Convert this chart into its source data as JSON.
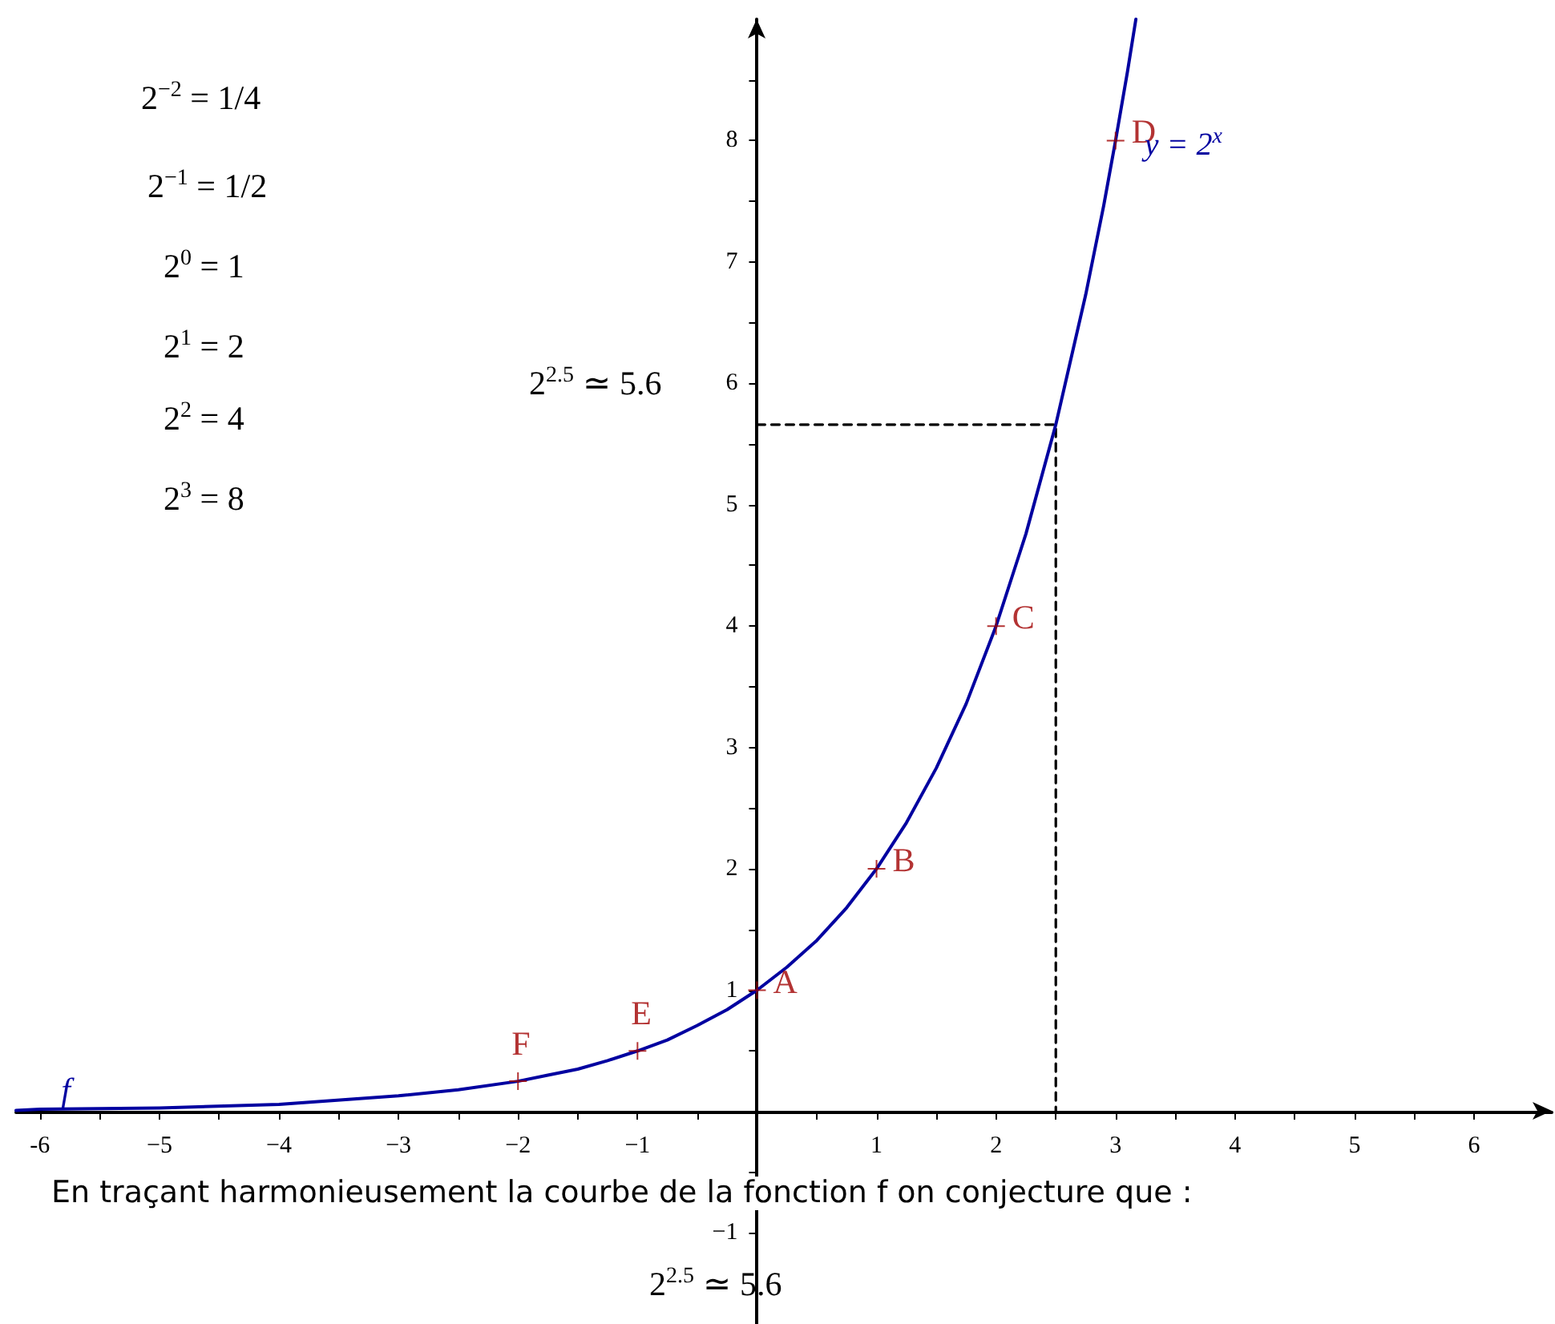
{
  "chart_data": {
    "type": "line",
    "xlim": [
      -6.2,
      6.65
    ],
    "ylim": [
      -1.75,
      9.0
    ],
    "xticks": [
      {
        "value": -6,
        "label": "-6"
      },
      {
        "value": -5.5,
        "label": null
      },
      {
        "value": -5,
        "label": "−5"
      },
      {
        "value": -4.5,
        "label": null
      },
      {
        "value": -4,
        "label": "−4"
      },
      {
        "value": -3.5,
        "label": null
      },
      {
        "value": -3,
        "label": "−3"
      },
      {
        "value": -2.5,
        "label": null
      },
      {
        "value": -2,
        "label": "−2"
      },
      {
        "value": -1.5,
        "label": null
      },
      {
        "value": -1,
        "label": "−1"
      },
      {
        "value": -0.5,
        "label": null
      },
      {
        "value": 0.5,
        "label": null
      },
      {
        "value": 1,
        "label": "1"
      },
      {
        "value": 1.5,
        "label": null
      },
      {
        "value": 2,
        "label": "2"
      },
      {
        "value": 2.5,
        "label": null
      },
      {
        "value": 3,
        "label": "3"
      },
      {
        "value": 3.5,
        "label": null
      },
      {
        "value": 4,
        "label": "4"
      },
      {
        "value": 4.5,
        "label": null
      },
      {
        "value": 5,
        "label": "5"
      },
      {
        "value": 5.5,
        "label": null
      },
      {
        "value": 6,
        "label": "6"
      }
    ],
    "yticks": [
      {
        "value": -1,
        "label": "−1"
      },
      {
        "value": -0.5,
        "label": null
      },
      {
        "value": 0.5,
        "label": null
      },
      1,
      {
        "value": 1.5,
        "label": null
      },
      2,
      {
        "value": 2.5,
        "label": null
      },
      3,
      {
        "value": 3.5,
        "label": null
      },
      4,
      {
        "value": 4.5,
        "label": null
      },
      5,
      {
        "value": 5.5,
        "label": null
      },
      6,
      {
        "value": 6.5,
        "label": null
      },
      7,
      {
        "value": 7.5,
        "label": null
      },
      8,
      {
        "value": 8.5,
        "label": null
      }
    ],
    "grid": false,
    "legend": false,
    "series": [
      {
        "name": "y = 2$^{x}$",
        "color": "#0000a0",
        "marker": "none",
        "line_style": "solid",
        "x": [
          -6.2,
          -6,
          -5,
          -4,
          -3,
          -2.5,
          -2,
          -1.75,
          -1.5,
          -1.25,
          -1,
          -0.75,
          -0.5,
          -0.25,
          0,
          0.25,
          0.5,
          0.75,
          1,
          1.25,
          1.5,
          1.75,
          2,
          2.25,
          2.5,
          2.75,
          2.9,
          3,
          3.1,
          3.17
        ],
        "values": [
          0.01,
          0.02,
          0.03,
          0.06,
          0.13,
          0.18,
          0.25,
          0.3,
          0.35,
          0.42,
          0.5,
          0.59,
          0.71,
          0.84,
          1,
          1.19,
          1.41,
          1.68,
          2,
          2.38,
          2.83,
          3.36,
          4,
          4.76,
          5.66,
          6.73,
          7.46,
          8,
          8.57,
          9.0
        ]
      },
      {
        "color": "#000000",
        "marker": "none",
        "line_style": "dashed",
        "x": [
          0,
          2.5,
          2.5
        ],
        "values": [
          5.66,
          5.66,
          0
        ]
      },
      {
        "name": "A",
        "type": "scatter",
        "color": "#a00000",
        "marker": "cross",
        "x": [
          0
        ],
        "values": [
          1
        ]
      },
      {
        "name": "B",
        "type": "scatter",
        "color": "#a00000",
        "marker": "cross",
        "x": [
          1
        ],
        "values": [
          2
        ]
      },
      {
        "name": "C",
        "type": "scatter",
        "color": "#a00000",
        "marker": "cross",
        "x": [
          2
        ],
        "values": [
          4
        ]
      },
      {
        "name": "D",
        "type": "scatter",
        "color": "#a00000",
        "marker": "cross",
        "x": [
          3
        ],
        "values": [
          8
        ]
      },
      {
        "name": "E",
        "type": "scatter",
        "color": "#a00000",
        "marker": "cross",
        "x": [
          -1
        ],
        "values": [
          0.5
        ]
      },
      {
        "name": "F",
        "type": "scatter",
        "color": "#a00000",
        "marker": "cross",
        "x": [
          -2
        ],
        "values": [
          0.25
        ]
      }
    ],
    "annotations": [
      "2$^{−2}$ = 1/4",
      "2$^{−1}$ = 1/2",
      "2$^{0}$ = 1",
      "2$^{1}$ = 2",
      "2$^{2}$ = 4",
      "2$^{3}$ = 8",
      "2$^{2.5}$ ≃ 5.6",
      "En traçant harmonieusement la courbe de la fonction f on conjecture que :",
      "2$^{2.5}$ ≃ 5.6",
      {
        "text": "f",
        "x": -5.85,
        "y": 0.05
      }
    ]
  }
}
